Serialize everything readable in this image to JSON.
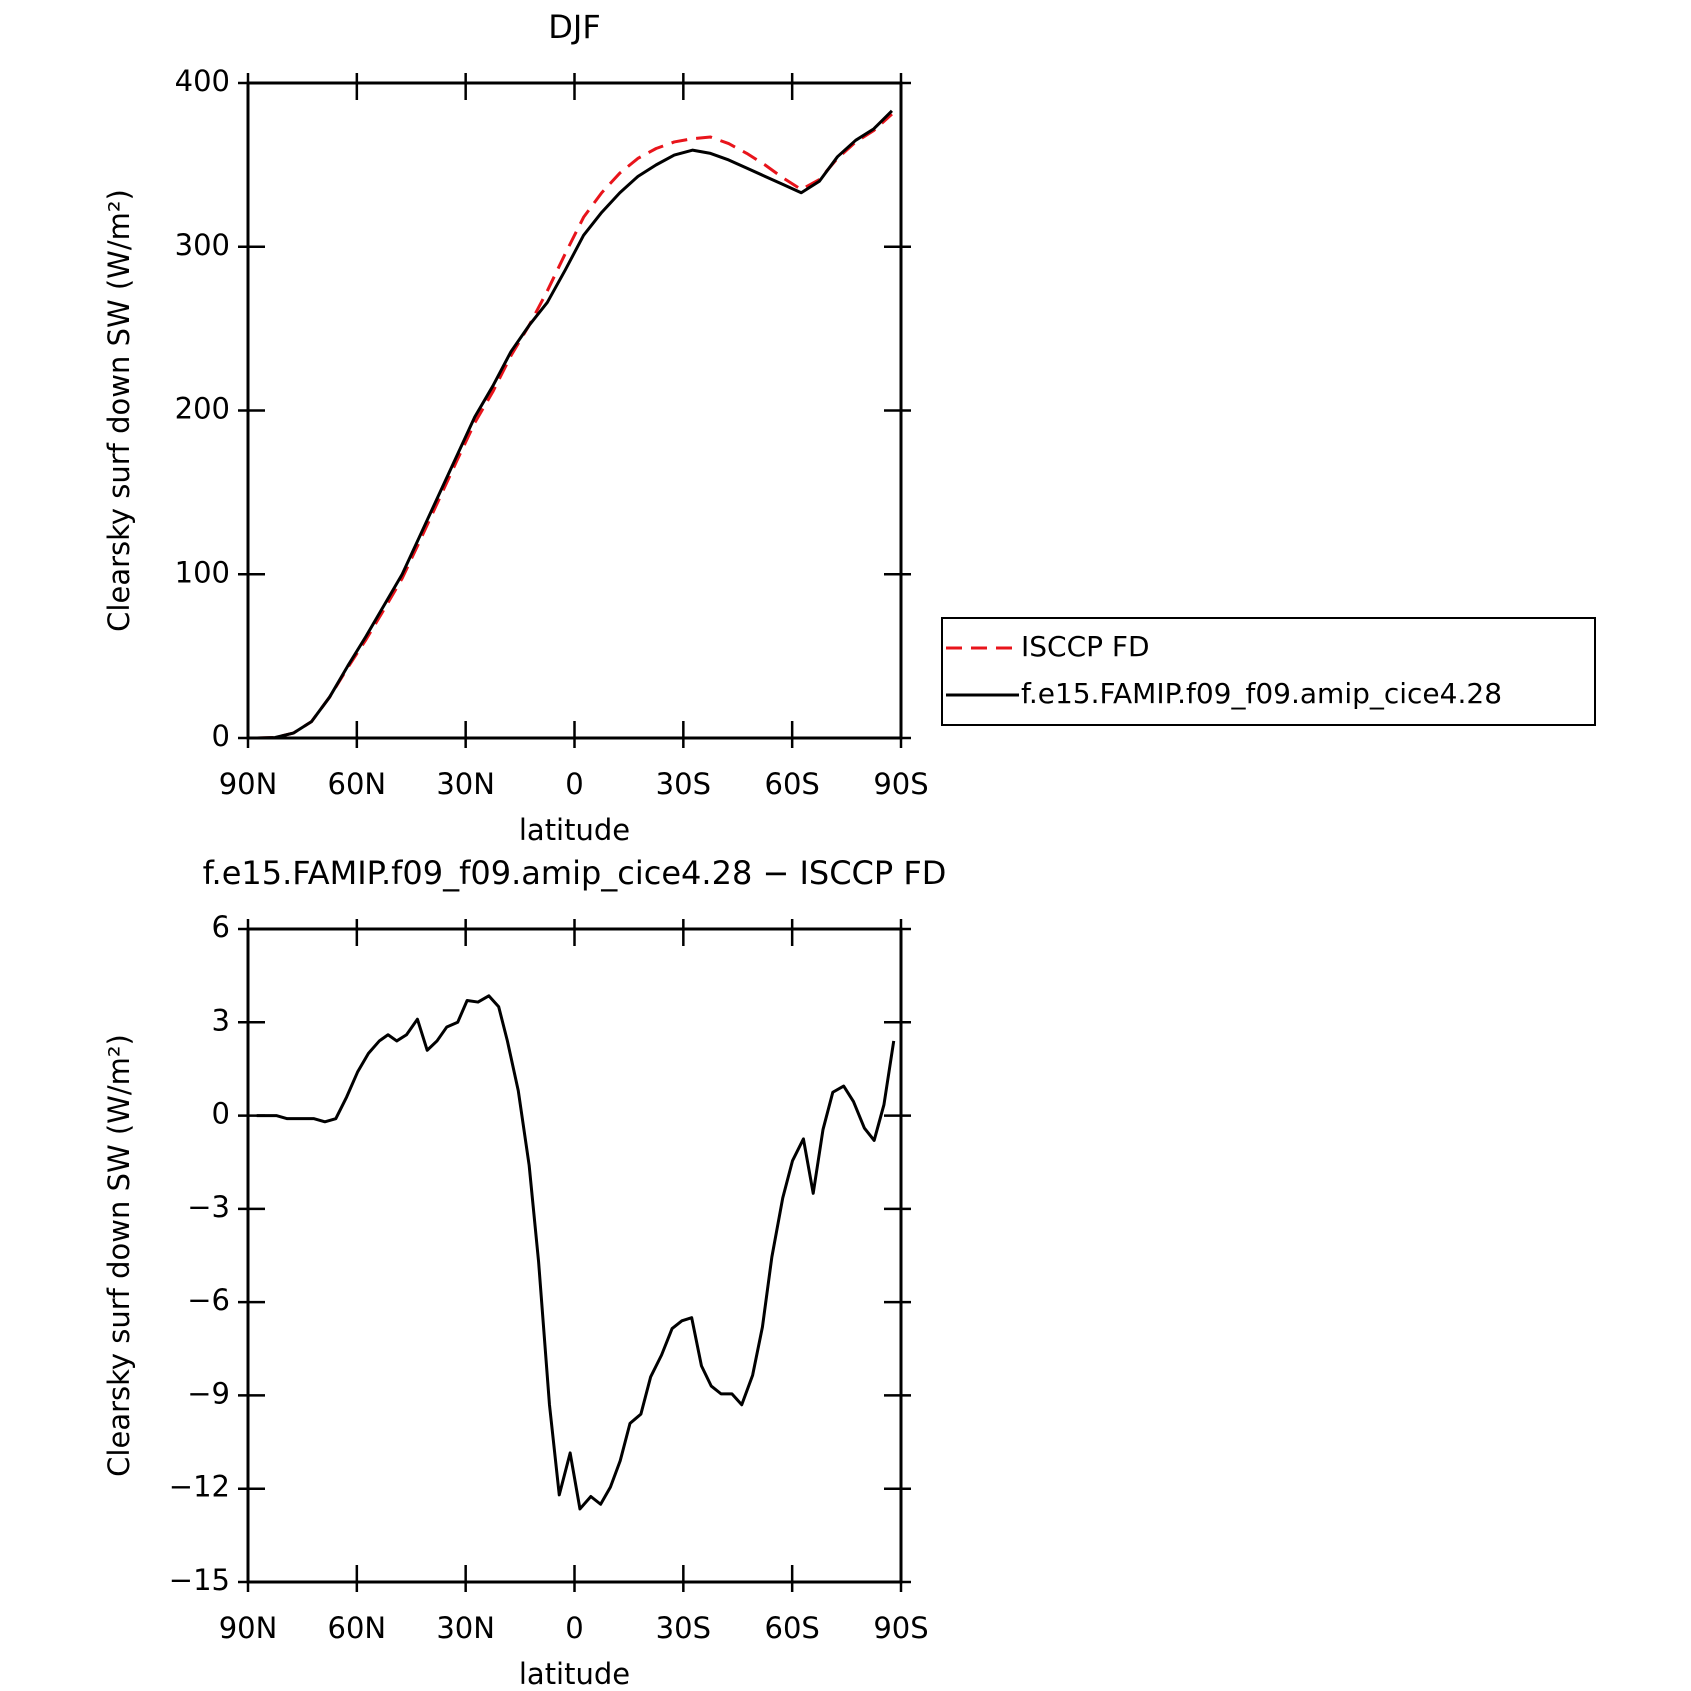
{
  "chart_data": [
    {
      "type": "line",
      "title": "DJF",
      "xlabel": "latitude",
      "ylabel": "Clearsky surf down SW (W/m²)",
      "x": [
        87.5,
        82.5,
        77.5,
        72.5,
        67.5,
        62.5,
        57.5,
        52.5,
        47.5,
        42.5,
        37.5,
        32.5,
        27.5,
        22.5,
        17.5,
        12.5,
        7.5,
        2.5,
        -2.5,
        -7.5,
        -12.5,
        -17.5,
        -22.5,
        -27.5,
        -32.5,
        -37.5,
        -42.5,
        -47.5,
        -52.5,
        -57.5,
        -62.5,
        -67.5,
        -72.5,
        -77.5,
        -82.5,
        -87.5
      ],
      "series": [
        {
          "name": "ISCCP FD",
          "color": "#e8141b",
          "linestyle": "dashed",
          "values": [
            0,
            0.3,
            3,
            10,
            25,
            43,
            60,
            78.5,
            97.5,
            121,
            145,
            169,
            192.5,
            211.5,
            233.5,
            252,
            273,
            296,
            318,
            333,
            345,
            354,
            360,
            364,
            366,
            367,
            363,
            357,
            350,
            342,
            335,
            341,
            354,
            364,
            371,
            381
          ]
        },
        {
          "name": "f.e15.FAMIP.f09_f09.amip_cice4.28",
          "color": "#000000",
          "linestyle": "solid",
          "values": [
            0,
            0.3,
            3,
            10,
            25,
            44,
            62,
            81,
            100,
            124,
            148,
            172,
            196,
            215,
            236,
            252,
            266,
            286,
            307,
            321,
            333,
            343,
            350,
            356,
            359,
            357,
            353,
            348,
            343,
            338,
            333,
            340,
            355,
            365,
            372,
            383
          ]
        }
      ],
      "xlim": [
        90,
        -90
      ],
      "xticks": [
        {
          "value": 90,
          "label": "90N"
        },
        {
          "value": 60,
          "label": "60N"
        },
        {
          "value": 30,
          "label": "30N"
        },
        0,
        {
          "value": -30,
          "label": "30S"
        },
        {
          "value": -60,
          "label": "60S"
        },
        {
          "value": -90,
          "label": "90S"
        }
      ],
      "ylim": [
        0,
        400
      ],
      "yticks": [
        0,
        100,
        200,
        300,
        400
      ],
      "grid": false,
      "legend": "outside right"
    },
    {
      "type": "line",
      "title": "f.e15.FAMIP.f09_f09.amip_cice4.28 − ISCCP FD",
      "xlabel": "latitude",
      "ylabel": "Clearsky surf down SW (W/m²)",
      "x": [
        87.6,
        82.2,
        79.2,
        76.2,
        71.8,
        68.8,
        65.8,
        62.8,
        59.8,
        56.8,
        53.8,
        51.4,
        49.0,
        46.3,
        43.3,
        40.6,
        37.9,
        35.2,
        32.2,
        29.6,
        26.6,
        23.6,
        20.9,
        18.5,
        15.5,
        12.5,
        9.9,
        6.9,
        4.2,
        1.2,
        -1.5,
        -4.5,
        -7.2,
        -9.9,
        -12.6,
        -15.3,
        -18.3,
        -21.0,
        -24.0,
        -26.9,
        -29.6,
        -32.3,
        -35.0,
        -37.7,
        -40.4,
        -43.4,
        -46.1,
        -49.1,
        -51.8,
        -54.4,
        -57.4,
        -60.1,
        -63.1,
        -65.8,
        -68.5,
        -71.2,
        -74.2,
        -76.9,
        -79.9,
        -82.6,
        -85.3,
        -88.0
      ],
      "values": [
        0,
        0,
        -0.1,
        -0.1,
        -0.1,
        -0.2,
        -0.1,
        0.6,
        1.4,
        2.0,
        2.4,
        2.6,
        2.4,
        2.6,
        3.1,
        2.1,
        2.4,
        2.85,
        3.0,
        3.7,
        3.65,
        3.85,
        3.5,
        2.4,
        0.8,
        -1.6,
        -4.7,
        -9.3,
        -12.2,
        -10.85,
        -12.65,
        -12.25,
        -12.5,
        -11.95,
        -11.1,
        -9.9,
        -9.6,
        -8.4,
        -7.7,
        -6.85,
        -6.6,
        -6.5,
        -8.05,
        -8.7,
        -8.95,
        -8.95,
        -9.3,
        -8.35,
        -6.8,
        -4.55,
        -2.65,
        -1.45,
        -0.75,
        -2.5,
        -0.45,
        0.75,
        0.95,
        0.45,
        -0.4,
        -0.8,
        0.35,
        2.4
      ],
      "color": "#000000",
      "xlim": [
        90,
        -90
      ],
      "xticks": [
        {
          "value": 90,
          "label": "90N"
        },
        {
          "value": 60,
          "label": "60N"
        },
        {
          "value": 30,
          "label": "30N"
        },
        0,
        {
          "value": -30,
          "label": "30S"
        },
        {
          "value": -60,
          "label": "60S"
        },
        {
          "value": -90,
          "label": "90S"
        }
      ],
      "ylim": [
        -15,
        6
      ],
      "yticks": [
        {
          "value": -15,
          "label": "−15"
        },
        {
          "value": -12,
          "label": "−12"
        },
        {
          "value": -9,
          "label": "−9"
        },
        {
          "value": -6,
          "label": "−6"
        },
        {
          "value": -3,
          "label": "−3"
        },
        0,
        3,
        6
      ],
      "grid": false
    }
  ]
}
